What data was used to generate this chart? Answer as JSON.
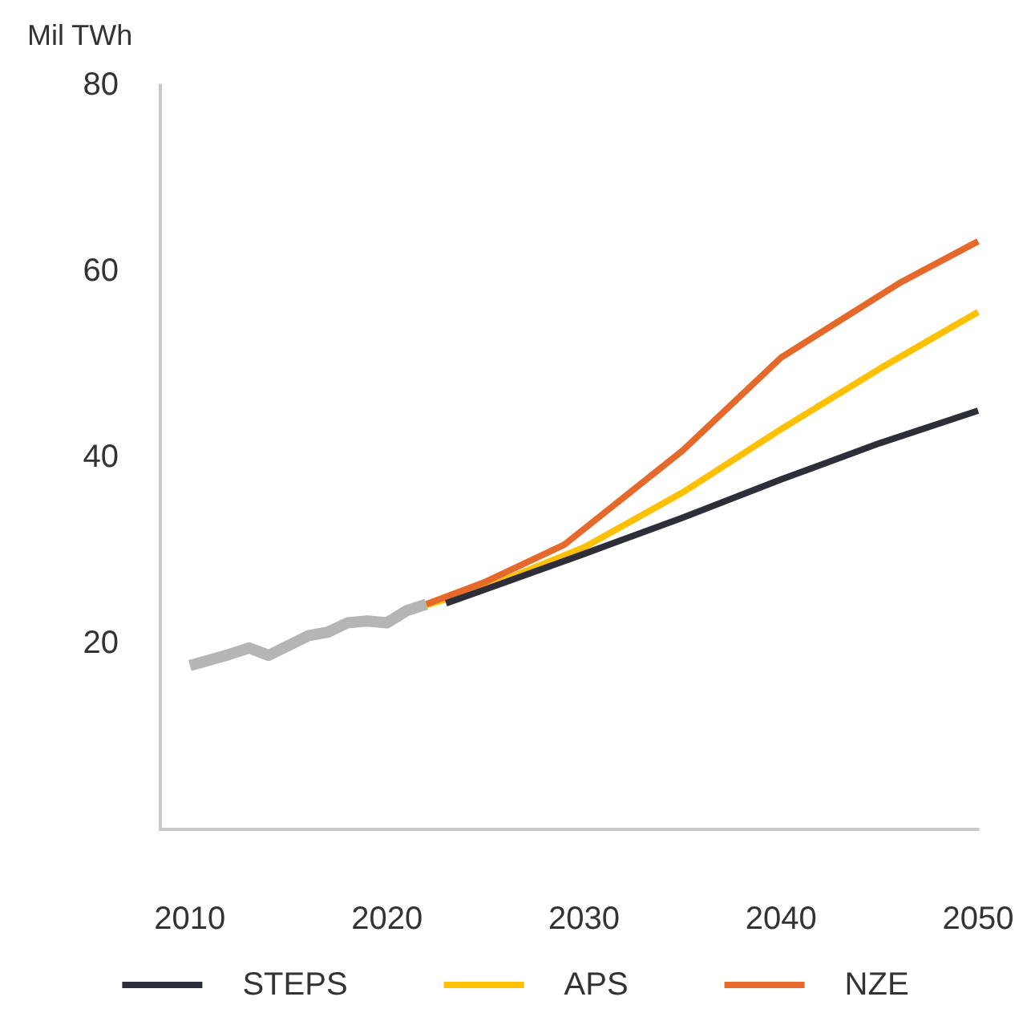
{
  "chart_data": {
    "type": "line",
    "ylabel": "Mil TWh",
    "xlim": [
      2008.5,
      2050
    ],
    "xticks": [
      2010,
      2020,
      2030,
      2040,
      2050
    ],
    "ylim": [
      0,
      80
    ],
    "yticks": [
      20,
      40,
      60,
      80
    ],
    "grid": false,
    "legend": "bottom",
    "marker": "none",
    "line_style": "solid",
    "series": [
      {
        "color": "#b5b5b5",
        "x": [
          2010,
          2012,
          2013,
          2014,
          2016,
          2017,
          2018,
          2019,
          2020,
          2021,
          2022
        ],
        "values": [
          17.6,
          18.8,
          19.5,
          18.7,
          20.8,
          21.2,
          22.2,
          22.4,
          22.2,
          23.5,
          24.2
        ]
      },
      {
        "name": "STEPS",
        "color": "#2e2e38",
        "x": [
          2023,
          2025,
          2030,
          2035,
          2040,
          2045,
          2050
        ],
        "values": [
          24.3,
          25.8,
          29.6,
          33.5,
          37.6,
          41.5,
          45.0
        ]
      },
      {
        "name": "APS",
        "color": "#ffc000",
        "x": [
          2022,
          2025,
          2030,
          2035,
          2040,
          2045,
          2050
        ],
        "values": [
          24.1,
          26.0,
          30.3,
          36.2,
          43.0,
          49.5,
          55.6
        ]
      },
      {
        "name": "NZE",
        "color": "#e4692a",
        "x": [
          2022,
          2025,
          2029,
          2035,
          2040,
          2046,
          2050
        ],
        "values": [
          24.2,
          26.6,
          30.6,
          40.7,
          50.7,
          58.7,
          63.2
        ]
      }
    ]
  }
}
